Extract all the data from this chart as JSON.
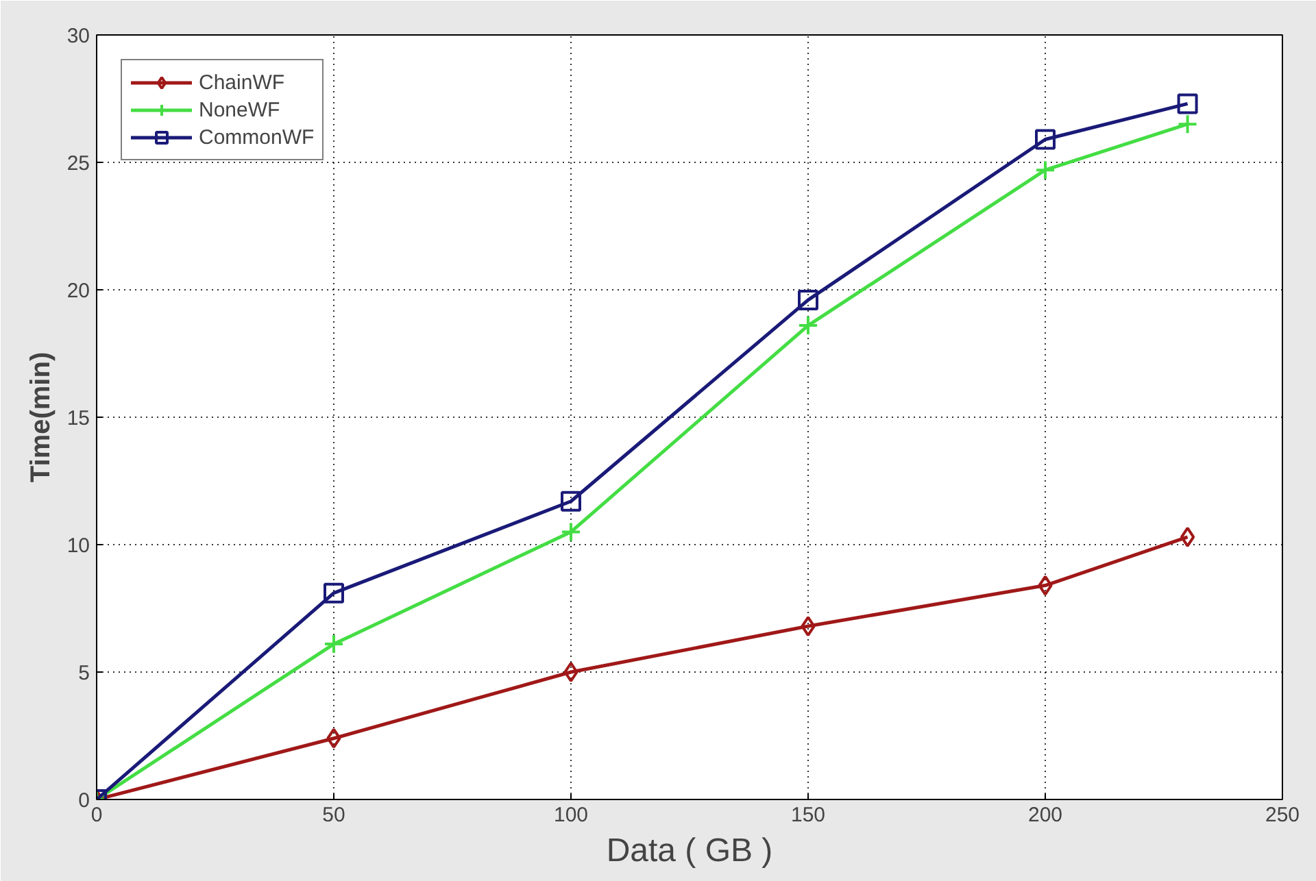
{
  "chart_data": {
    "type": "line",
    "xlabel": "Data ( GB )",
    "ylabel": "Time(min)",
    "x": [
      0,
      50,
      100,
      150,
      200,
      230
    ],
    "series": [
      {
        "name": "ChainWF",
        "color": "#a01818",
        "marker": "diamond",
        "values": [
          0,
          2.4,
          5.0,
          6.8,
          8.4,
          10.3
        ]
      },
      {
        "name": "NoneWF",
        "color": "#44dd44",
        "marker": "cross",
        "values": [
          0,
          6.1,
          10.5,
          18.6,
          24.7,
          26.5
        ]
      },
      {
        "name": "CommonWF",
        "color": "#1a1a78",
        "marker": "square",
        "values": [
          0,
          8.1,
          11.7,
          19.6,
          25.9,
          27.3
        ]
      }
    ],
    "xlim": [
      0,
      250
    ],
    "xticks": [
      0,
      50,
      100,
      150,
      200,
      250
    ],
    "ylim": [
      0,
      30
    ],
    "yticks": [
      0,
      5,
      10,
      15,
      20,
      25,
      30
    ],
    "grid": true,
    "legend": "top left",
    "line_style": "solid"
  }
}
